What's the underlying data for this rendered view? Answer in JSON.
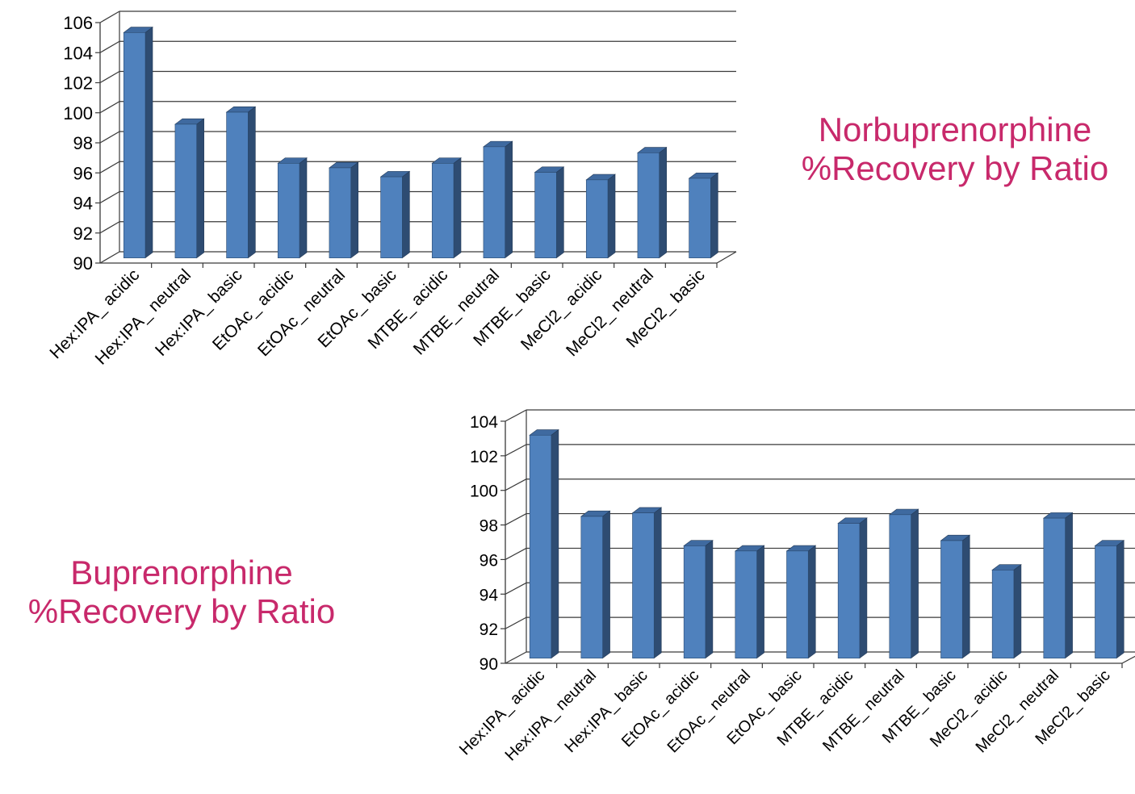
{
  "colors": {
    "bar_front": "#4f81bd",
    "bar_side": "#2e4c72",
    "bar_top": "#3f6aa0",
    "grid": "#3a3a3a",
    "title": "#c8296b",
    "text": "#000000"
  },
  "titles": {
    "norbuprenorphine": {
      "line1": "Norbuprenorphine",
      "line2": "%Recovery by Ratio"
    },
    "buprenorphine": {
      "line1": "Buprenorphine",
      "line2": "%Recovery by Ratio"
    }
  },
  "chart_data": [
    {
      "type": "bar",
      "name": "norbuprenorphine",
      "title": "Norbuprenorphine %Recovery by Ratio",
      "categories": [
        "Hex:IPA_ acidic",
        "Hex:IPA_ neutral",
        "Hex:IPA_ basic",
        "EtOAc_ acidic",
        "EtOAc_ neutral",
        "EtOAc_ basic",
        "MTBE_ acidic",
        "MTBE_ neutral",
        "MTBE_ basic",
        "MeCl2_ acidic",
        "MeCl2_ neutral",
        "MeCl2_ basic"
      ],
      "values": [
        105.0,
        98.9,
        99.7,
        96.3,
        96.0,
        95.4,
        96.3,
        97.4,
        95.7,
        95.2,
        97.0,
        95.3
      ],
      "ylim": [
        90,
        106
      ],
      "yticks": [
        90,
        92,
        94,
        96,
        98,
        100,
        102,
        104,
        106
      ],
      "grid": true,
      "legend": "none"
    },
    {
      "type": "bar",
      "name": "buprenorphine",
      "title": "Buprenorphine %Recovery by Ratio",
      "categories": [
        "Hex:IPA_ acidic",
        "Hex:IPA_ neutral",
        "Hex:IPA_ basic",
        "EtOAc_ acidic",
        "EtOAc_ neutral",
        "EtOAc_ basic",
        "MTBE_ acidic",
        "MTBE_ neutral",
        "MTBE_ basic",
        "MeCl2_ acidic",
        "MeCl2_ neutral",
        "MeCl2_ basic"
      ],
      "values": [
        102.9,
        98.2,
        98.4,
        96.5,
        96.2,
        96.2,
        97.8,
        98.3,
        96.8,
        95.1,
        98.1,
        96.5
      ],
      "ylim": [
        90,
        104
      ],
      "yticks": [
        90,
        92,
        94,
        96,
        98,
        100,
        102,
        104
      ],
      "grid": true,
      "legend": "none"
    }
  ]
}
